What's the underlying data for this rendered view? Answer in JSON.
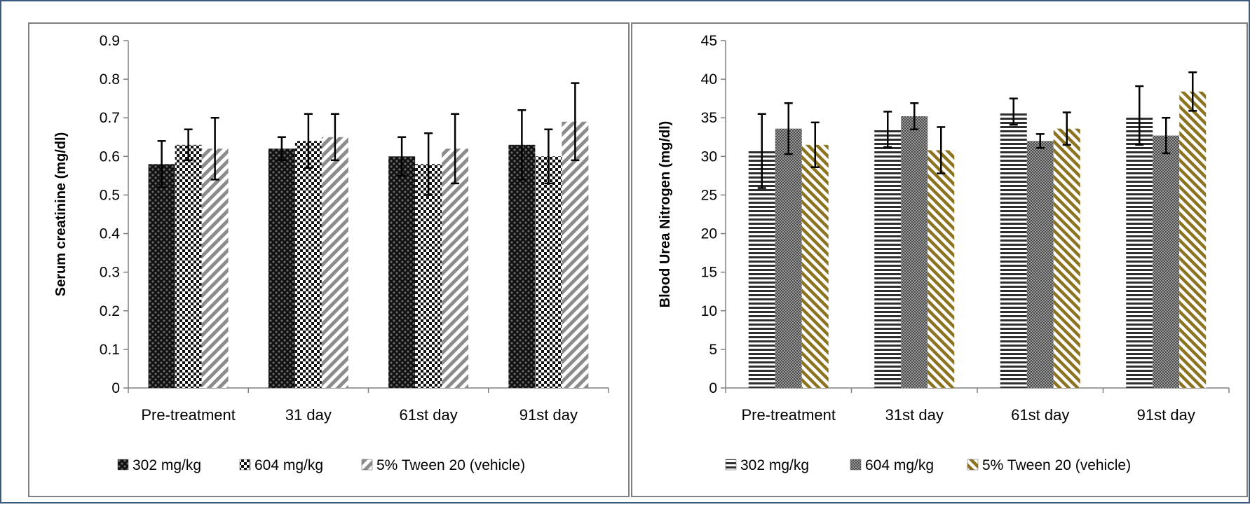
{
  "chart_data": [
    {
      "type": "bar",
      "ylabel": "Serum creatinine (mg/dl)",
      "xlabel": "",
      "categories": [
        "Pre-treatment",
        "31 day",
        "61st day",
        "91st day"
      ],
      "ylim": [
        0,
        0.9
      ],
      "yticks": [
        "0",
        "0.1",
        "0.2",
        "0.3",
        "0.4",
        "0.5",
        "0.6",
        "0.7",
        "0.8",
        "0.9"
      ],
      "grid": false,
      "error_bars": true,
      "legend": "bottom",
      "series": [
        {
          "name": "302 mg/kg",
          "color": "#1e1e1e",
          "pattern": "dots-dark",
          "values": [
            0.58,
            0.62,
            0.6,
            0.63
          ],
          "errors": [
            0.06,
            0.03,
            0.05,
            0.09
          ]
        },
        {
          "name": "604 mg/kg",
          "color": "#ffffff",
          "pattern": "checker",
          "values": [
            0.63,
            0.64,
            0.58,
            0.6
          ],
          "errors": [
            0.04,
            0.07,
            0.08,
            0.07
          ]
        },
        {
          "name": "5% Tween 20 (vehicle)",
          "color": "#8c8c8c",
          "pattern": "diag-gray",
          "values": [
            0.62,
            0.65,
            0.62,
            0.69
          ],
          "errors": [
            0.08,
            0.06,
            0.09,
            0.1
          ]
        }
      ]
    },
    {
      "type": "bar",
      "ylabel": "Blood Urea Nitrogen (mg/dl)",
      "xlabel": "",
      "categories": [
        "Pre-treatment",
        "31st day",
        "61st day",
        "91st day"
      ],
      "ylim": [
        0,
        45
      ],
      "yticks": [
        "0",
        "5",
        "10",
        "15",
        "20",
        "25",
        "30",
        "35",
        "40",
        "45"
      ],
      "grid": false,
      "error_bars": true,
      "legend": "bottom",
      "series": [
        {
          "name": "302 mg/kg",
          "color": "#333333",
          "pattern": "hstripes",
          "values": [
            30.7,
            33.5,
            35.8,
            35.3
          ],
          "errors": [
            4.8,
            2.3,
            1.7,
            3.8
          ]
        },
        {
          "name": "604 mg/kg",
          "color": "#555555",
          "pattern": "dots-gray",
          "values": [
            33.6,
            35.2,
            32.0,
            32.7
          ],
          "errors": [
            3.3,
            1.7,
            0.9,
            2.3
          ]
        },
        {
          "name": "5% Tween 20 (vehicle)",
          "color": "#8b7320",
          "pattern": "diag-gold",
          "values": [
            31.5,
            30.8,
            33.6,
            38.4
          ],
          "errors": [
            2.9,
            3.0,
            2.1,
            2.5
          ]
        }
      ]
    }
  ]
}
